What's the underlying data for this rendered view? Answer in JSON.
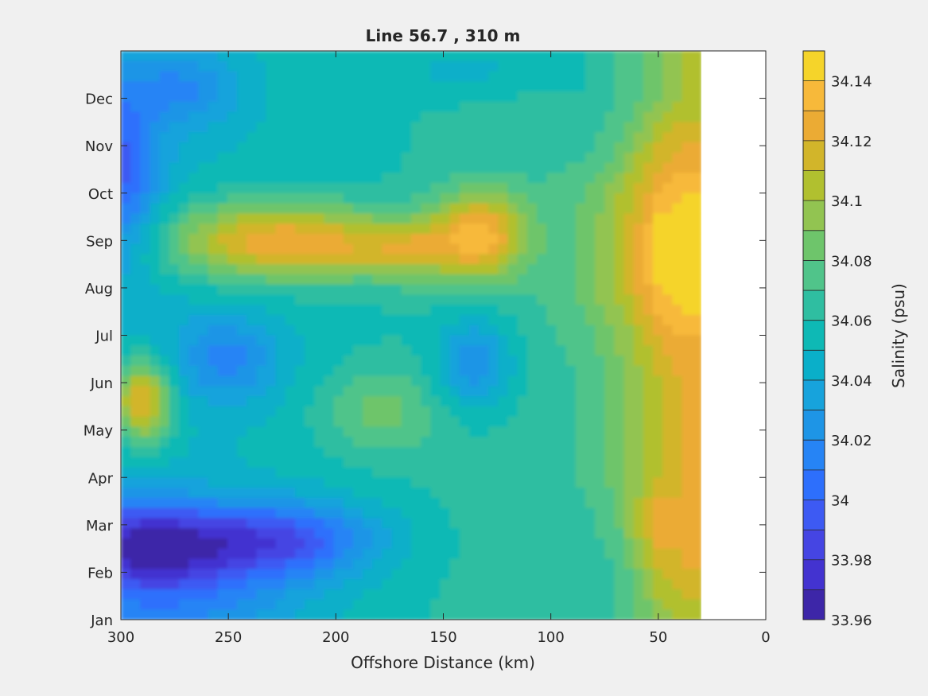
{
  "chart_data": {
    "type": "heatmap",
    "subtype": "filled-contour",
    "title": "Line 56.7 , 310 m",
    "xlabel": "Offshore Distance (km)",
    "xlim": [
      300,
      0
    ],
    "xticks": [
      300,
      250,
      200,
      150,
      100,
      50,
      0
    ],
    "y_categories": [
      "Jan",
      "Feb",
      "Mar",
      "Apr",
      "May",
      "Jun",
      "Jul",
      "Aug",
      "Sep",
      "Oct",
      "Nov",
      "Dec"
    ],
    "y_tick_values": [
      1,
      2,
      3,
      4,
      5,
      6,
      7,
      8,
      9,
      10,
      11,
      12
    ],
    "ylim": [
      1,
      13
    ],
    "data_x_max_km": 300,
    "data_x_min_km": 30,
    "colorbar": {
      "label": "Salinity (psu)",
      "range": [
        33.96,
        34.15
      ],
      "ticks": [
        33.96,
        33.98,
        34,
        34.02,
        34.04,
        34.06,
        34.08,
        34.1,
        34.12,
        34.14
      ],
      "levels": [
        33.96,
        33.97,
        33.98,
        33.99,
        34.0,
        34.01,
        34.02,
        34.03,
        34.04,
        34.05,
        34.06,
        34.07,
        34.08,
        34.09,
        34.1,
        34.11,
        34.12,
        34.13,
        34.14,
        34.15
      ],
      "colors": [
        "#3d26a8",
        "#4333d0",
        "#4545e3",
        "#3d5af3",
        "#2d6ffc",
        "#2684f5",
        "#1e95e6",
        "#17a3dc",
        "#0aafc9",
        "#0eb9b5",
        "#2fbea1",
        "#50c48a",
        "#6ec56b",
        "#92c451",
        "#b1c02f",
        "#d2b52a",
        "#ebab34",
        "#f7b93a",
        "#f5d42a",
        "#f5ec1a"
      ]
    },
    "bump_shape": {
      "months": [
        1,
        2,
        3,
        4,
        5,
        6,
        7,
        8,
        9,
        10,
        11,
        12,
        13
      ],
      "x_km": [
        30,
        40,
        50,
        60,
        70,
        80,
        90
      ],
      "value": [
        [
          34.1,
          34.1,
          34.09,
          34.08,
          34.07,
          34.06,
          34.05
        ],
        [
          34.12,
          34.12,
          34.11,
          34.09,
          34.07,
          34.06,
          34.05
        ],
        [
          34.12,
          34.12,
          34.13,
          34.11,
          34.08,
          34.07,
          34.06
        ],
        [
          34.12,
          34.12,
          34.11,
          34.1,
          34.09,
          34.08,
          34.07
        ],
        [
          34.12,
          34.12,
          34.11,
          34.1,
          34.09,
          34.08,
          34.07
        ],
        [
          34.12,
          34.12,
          34.11,
          34.1,
          34.09,
          34.08,
          34.07
        ],
        [
          34.13,
          34.13,
          34.12,
          34.11,
          34.1,
          34.09,
          34.08
        ],
        [
          34.15,
          34.15,
          34.14,
          34.13,
          34.12,
          34.11,
          34.1
        ],
        [
          34.14,
          34.15,
          34.15,
          34.13,
          34.12,
          34.11,
          34.1
        ],
        [
          34.14,
          34.14,
          34.13,
          34.12,
          34.11,
          34.1,
          34.09
        ],
        [
          34.12,
          34.12,
          34.11,
          34.1,
          34.08,
          34.07,
          34.06
        ],
        [
          34.1,
          34.1,
          34.09,
          34.08,
          34.07,
          34.06,
          34.05
        ],
        [
          34.1,
          34.1,
          34.09,
          34.08,
          34.07,
          34.06,
          34.05
        ]
      ]
    },
    "grid": false
  }
}
